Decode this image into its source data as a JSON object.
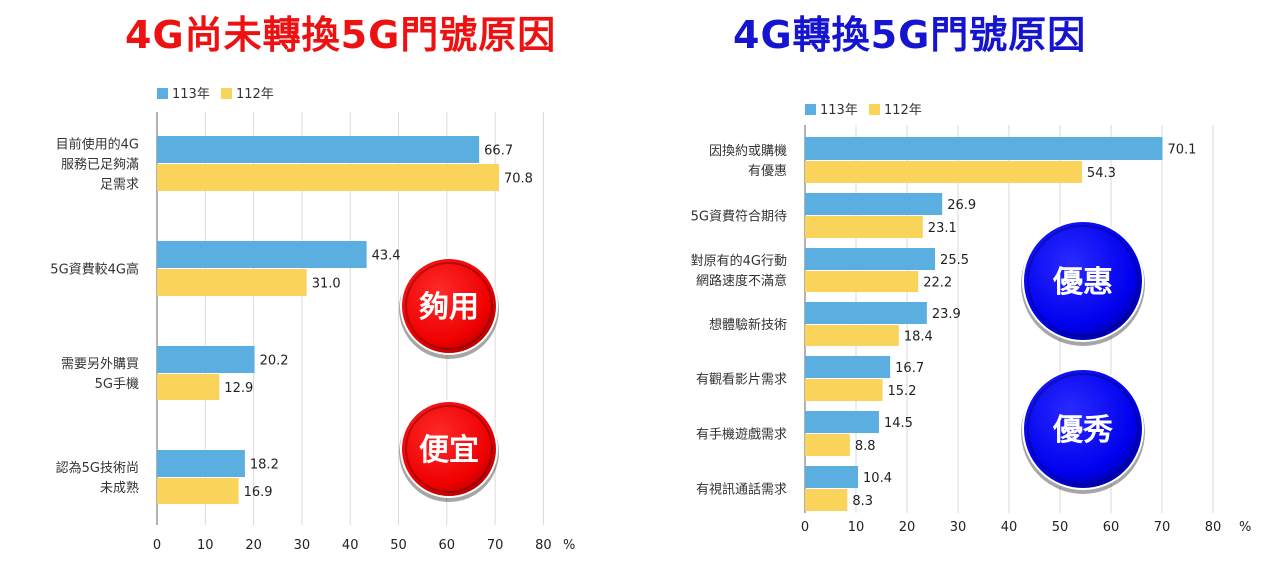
{
  "colors": {
    "series_113": "#5aaee0",
    "series_112": "#fad35a",
    "title_left": "#ee1111",
    "title_right": "#1515d0",
    "badge_red": "#ee0000",
    "badge_blue": "#0000ee"
  },
  "chart_data": [
    {
      "type": "bar",
      "orientation": "horizontal",
      "title": "4G尚未轉換5G門號原因",
      "unit": "%",
      "xlim": [
        0,
        80
      ],
      "ticks": [
        0,
        10,
        20,
        30,
        40,
        50,
        60,
        70,
        80
      ],
      "grid": true,
      "legend_position": "top-left",
      "categories": [
        [
          "目前使用的4G",
          "服務已足夠滿",
          "足需求"
        ],
        [
          "5G資費較4G高"
        ],
        [
          "需要另外購買",
          "5G手機"
        ],
        [
          "認為5G技術尚",
          "未成熟"
        ]
      ],
      "series": [
        {
          "name": "113年",
          "values": [
            66.7,
            43.4,
            20.2,
            18.2
          ]
        },
        {
          "name": "112年",
          "values": [
            70.8,
            31.0,
            12.9,
            16.9
          ]
        }
      ],
      "value_labels": [
        [
          "66.7",
          "43.4",
          "20.2",
          "18.2"
        ],
        [
          "70.8",
          "31.0",
          "12.9",
          "16.9"
        ]
      ],
      "badges": [
        "夠用",
        "便宜"
      ]
    },
    {
      "type": "bar",
      "orientation": "horizontal",
      "title": "4G轉換5G門號原因",
      "unit": "%",
      "xlim": [
        0,
        80
      ],
      "ticks": [
        0,
        10,
        20,
        30,
        40,
        50,
        60,
        70,
        80
      ],
      "grid": true,
      "legend_position": "top-left",
      "categories": [
        [
          "因換約或購機",
          "有優惠"
        ],
        [
          "5G資費符合期待"
        ],
        [
          "對原有的4G行動",
          "網路速度不滿意"
        ],
        [
          "想體驗新技術"
        ],
        [
          "有觀看影片需求"
        ],
        [
          "有手機遊戲需求"
        ],
        [
          "有視訊通話需求"
        ]
      ],
      "series": [
        {
          "name": "113年",
          "values": [
            70.1,
            26.9,
            25.5,
            23.9,
            16.7,
            14.5,
            10.4
          ]
        },
        {
          "name": "112年",
          "values": [
            54.3,
            23.1,
            22.2,
            18.4,
            15.2,
            8.8,
            8.3
          ]
        }
      ],
      "value_labels": [
        [
          "70.1",
          "26.9",
          "25.5",
          "23.9",
          "16.7",
          "14.5",
          "10.4"
        ],
        [
          "54.3",
          "23.1",
          "22.2",
          "18.4",
          "15.2",
          "8.8",
          "8.3"
        ]
      ],
      "badges": [
        "優惠",
        "優秀"
      ]
    }
  ]
}
